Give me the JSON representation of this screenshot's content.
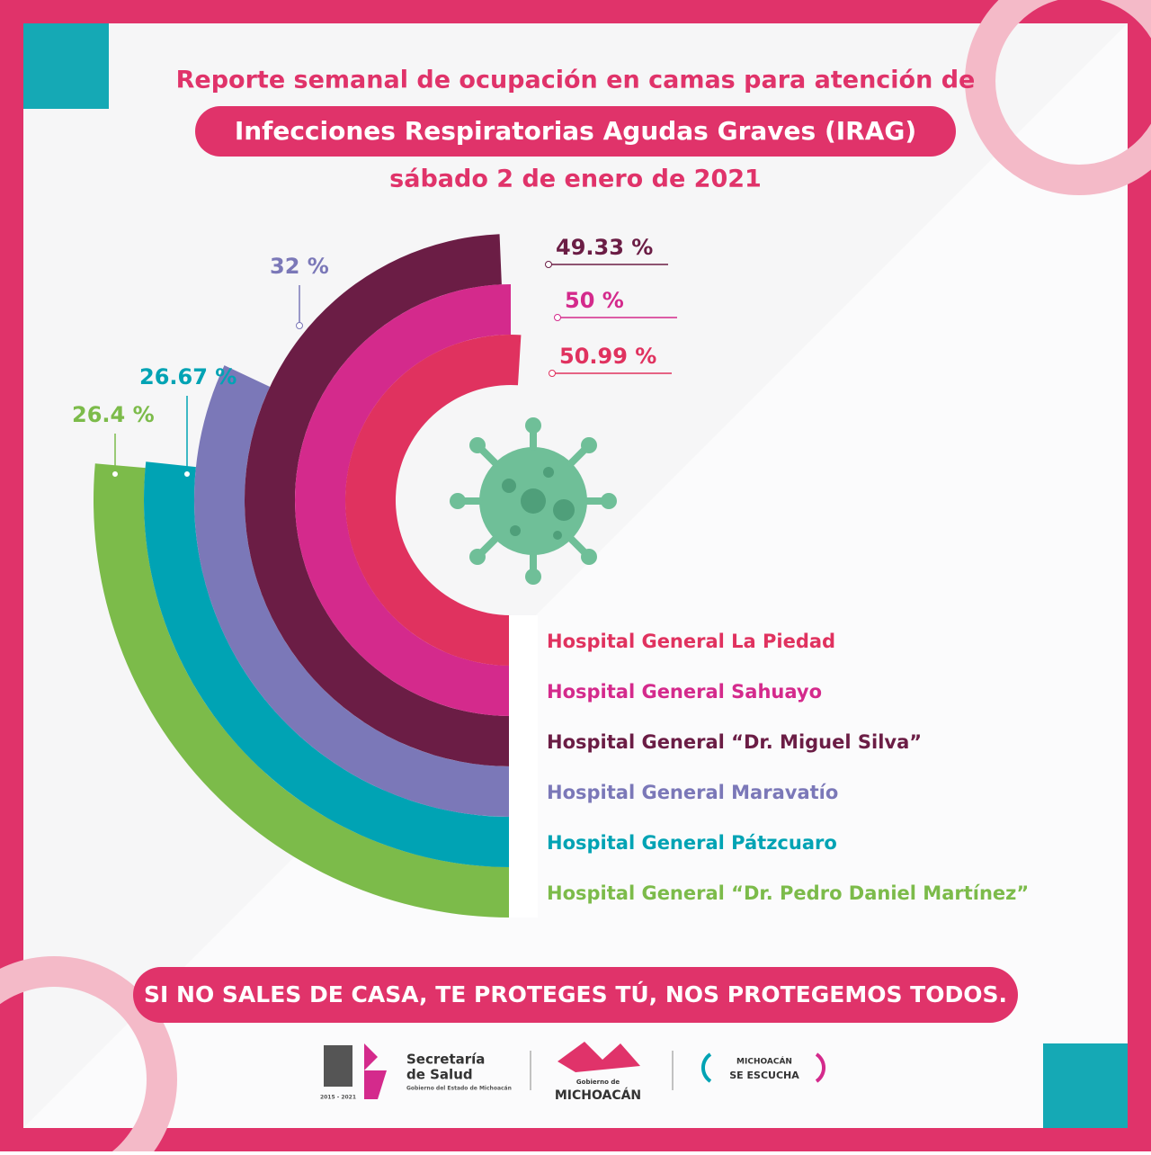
{
  "chart_data": {
    "type": "radial-bar",
    "title": "Reporte semanal de ocupación en camas para atención de",
    "subtitle": "Infecciones Respiratorias Agudas Graves (IRAG)",
    "date": "sábado 2 de enero de 2021",
    "categories": [
      "Hospital General La Piedad",
      "Hospital General Sahuayo",
      "Hospital General “Dr. Miguel Silva”",
      "Hospital General Maravatío",
      "Hospital General Pátzcuaro",
      "Hospital General “Dr. Pedro Daniel Martínez”"
    ],
    "values": [
      50.99,
      50,
      49.33,
      32,
      26.67,
      26.4
    ],
    "value_labels": [
      "50.99 %",
      "50 %",
      "49.33 %",
      "32 %",
      "26.67 %",
      "26.4 %"
    ],
    "colors": [
      "#e0325f",
      "#d42a8c",
      "#6b1d45",
      "#7b78b8",
      "#00a3b4",
      "#7cbb4a"
    ],
    "vlim": [
      0,
      100
    ]
  },
  "footer": {
    "slogan": "SI NO SALES DE CASA, TE PROTEGES TÚ, NOS PROTEGEMOS TODOS.",
    "years": "2015 - 2021",
    "salud": "Secretaría",
    "salud2": "de Salud",
    "estado": "Gobierno del Estado de Michoacán",
    "gob": "Gobierno de",
    "mich": "MICHOACÁN",
    "escucha1": "MICHOACÁN",
    "escucha2": "SE ESCUCHA"
  }
}
